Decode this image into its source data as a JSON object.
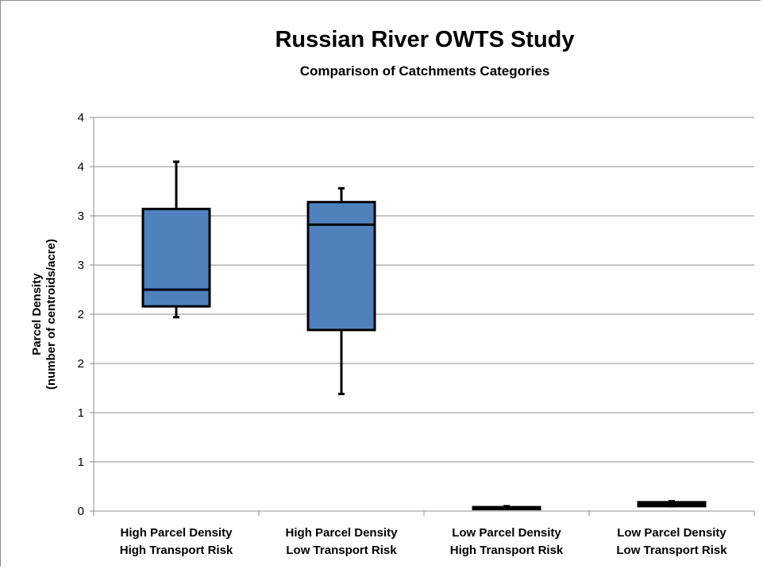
{
  "chart_data": {
    "type": "box",
    "title": "Russian River OWTS Study",
    "subtitle": "Comparison of Catchments Categories",
    "ylabel_lines": [
      "Parcel Density",
      "(number of centroids/acre)"
    ],
    "xlabel": "",
    "ylim": [
      0,
      4
    ],
    "y_tick_values": [
      0,
      0.5,
      1,
      1.5,
      2,
      2.5,
      3,
      3.5,
      4
    ],
    "y_tick_labels": [
      "0",
      "1",
      "1",
      "2",
      "2",
      "3",
      "3",
      "4",
      "4"
    ],
    "grid": true,
    "box_color": "#4f81bd",
    "categories": [
      {
        "lines": [
          "High Parcel Density",
          "High Transport Risk"
        ],
        "min": 1.97,
        "q1": 2.08,
        "median": 2.25,
        "q3": 3.07,
        "max": 3.55
      },
      {
        "lines": [
          "High Parcel Density",
          "Low Transport Risk"
        ],
        "min": 1.19,
        "q1": 1.84,
        "median": 2.91,
        "q3": 3.14,
        "max": 3.28
      },
      {
        "lines": [
          "Low Parcel Density",
          "High Transport Risk"
        ],
        "min": 0.02,
        "q1": 0.02,
        "median": 0.03,
        "q3": 0.04,
        "max": 0.05
      },
      {
        "lines": [
          "Low Parcel Density",
          "Low Transport Risk"
        ],
        "min": 0.05,
        "q1": 0.05,
        "median": 0.07,
        "q3": 0.09,
        "max": 0.1
      }
    ]
  }
}
